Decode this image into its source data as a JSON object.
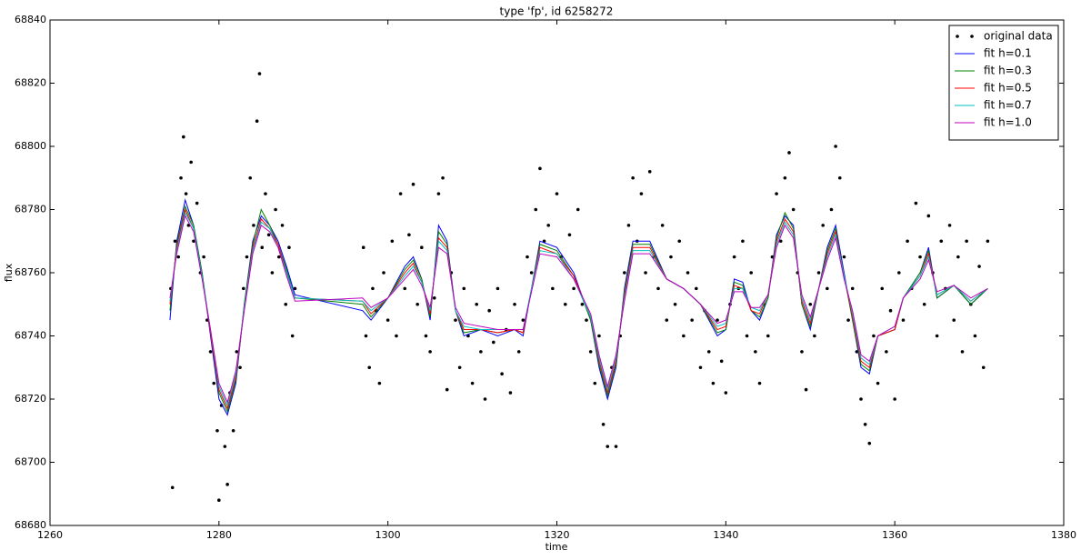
{
  "chart_data": {
    "type": "line",
    "title": "type 'fp', id 6258272",
    "x_label": "time",
    "y_label": "flux",
    "xlim": [
      1260,
      1380
    ],
    "xticks": [
      1260,
      1280,
      1300,
      1320,
      1340,
      1360,
      1380
    ],
    "ylim": [
      68680,
      68840
    ],
    "yticks": [
      68680,
      68700,
      68720,
      68740,
      68760,
      68780,
      68800,
      68820,
      68840
    ],
    "legend": "upper right",
    "x": [
      1274.2,
      1275,
      1276,
      1277,
      1278,
      1279,
      1280,
      1281,
      1282,
      1283,
      1284,
      1285,
      1286,
      1287,
      1288,
      1289,
      1297,
      1298,
      1300,
      1302,
      1303,
      1304,
      1305,
      1306,
      1307,
      1308,
      1309,
      1311,
      1313,
      1315,
      1316,
      1317,
      1318,
      1320,
      1322,
      1324,
      1325,
      1326,
      1327,
      1328,
      1329,
      1331,
      1333,
      1335,
      1337,
      1339,
      1340,
      1341,
      1342,
      1343,
      1344,
      1345,
      1346,
      1347,
      1348,
      1349,
      1350,
      1351,
      1352,
      1353,
      1354,
      1355,
      1356,
      1357,
      1358,
      1360,
      1361,
      1363,
      1364,
      1365,
      1367,
      1369,
      1371
    ],
    "series": [
      {
        "name": "original data",
        "color": "#000000",
        "marker": "dot",
        "line": false,
        "x": [
          1274.3,
          1274.5,
          1274.8,
          1275.2,
          1275.5,
          1275.8,
          1276.1,
          1276.4,
          1276.7,
          1277.0,
          1277.4,
          1277.8,
          1278.2,
          1278.6,
          1279.0,
          1279.4,
          1279.8,
          1280.0,
          1280.3,
          1280.7,
          1281.0,
          1281.3,
          1281.7,
          1282.1,
          1282.5,
          1282.9,
          1283.3,
          1283.7,
          1284.1,
          1284.5,
          1284.8,
          1285.1,
          1285.5,
          1285.9,
          1286.3,
          1286.7,
          1287.1,
          1287.5,
          1287.9,
          1288.3,
          1288.7,
          1289.0,
          1297.1,
          1297.4,
          1297.8,
          1298.2,
          1298.6,
          1299.0,
          1299.5,
          1300.0,
          1300.5,
          1301.0,
          1301.5,
          1302.0,
          1302.5,
          1303.0,
          1303.5,
          1304.0,
          1304.5,
          1305.0,
          1305.5,
          1306.0,
          1306.5,
          1307.0,
          1307.5,
          1308.0,
          1308.5,
          1309.0,
          1309.5,
          1310.0,
          1310.5,
          1311.0,
          1311.5,
          1312.0,
          1312.5,
          1313.0,
          1313.5,
          1314.0,
          1314.5,
          1315.0,
          1315.5,
          1316.0,
          1316.5,
          1317.0,
          1317.5,
          1318.0,
          1318.5,
          1319.0,
          1319.5,
          1320.0,
          1320.5,
          1321.0,
          1321.5,
          1322.0,
          1322.5,
          1323.0,
          1323.5,
          1324.0,
          1324.5,
          1325.0,
          1325.5,
          1326.0,
          1326.5,
          1327.0,
          1327.5,
          1328.0,
          1328.5,
          1329.0,
          1329.5,
          1330.0,
          1330.5,
          1331.0,
          1331.5,
          1332.0,
          1332.5,
          1333.0,
          1333.5,
          1334.0,
          1334.5,
          1335.0,
          1335.5,
          1336.0,
          1336.5,
          1337.0,
          1337.5,
          1338.0,
          1338.5,
          1339.0,
          1339.5,
          1340.0,
          1340.5,
          1341.0,
          1341.5,
          1342.0,
          1342.5,
          1343.0,
          1343.5,
          1344.0,
          1344.5,
          1345.0,
          1345.5,
          1346.0,
          1346.5,
          1347.0,
          1347.5,
          1348.0,
          1348.5,
          1349.0,
          1349.5,
          1350.0,
          1350.5,
          1351.0,
          1351.5,
          1352.0,
          1352.5,
          1353.0,
          1353.5,
          1354.0,
          1354.5,
          1355.0,
          1355.5,
          1356.0,
          1356.5,
          1357.0,
          1357.5,
          1358.0,
          1358.5,
          1359.0,
          1359.5,
          1360.0,
          1360.5,
          1361.0,
          1361.5,
          1362.0,
          1362.5,
          1363.0,
          1363.5,
          1364.0,
          1364.5,
          1365.0,
          1365.5,
          1366.0,
          1366.5,
          1367.0,
          1367.5,
          1368.0,
          1368.5,
          1369.0,
          1369.5,
          1370.0,
          1370.5,
          1371.0
        ],
        "values": [
          68755,
          68692,
          68770,
          68765,
          68790,
          68803,
          68785,
          68775,
          68795,
          68770,
          68782,
          68760,
          68765,
          68745,
          68735,
          68725,
          68710,
          68688,
          68718,
          68705,
          68693,
          68722,
          68710,
          68735,
          68730,
          68755,
          68765,
          68790,
          68775,
          68808,
          68823,
          68768,
          68785,
          68772,
          68760,
          68780,
          68765,
          68775,
          68750,
          68768,
          68740,
          68755,
          68768,
          68740,
          68730,
          68755,
          68748,
          68725,
          68760,
          68745,
          68770,
          68740,
          68785,
          68755,
          68772,
          68788,
          68750,
          68768,
          68740,
          68735,
          68752,
          68785,
          68790,
          68723,
          68760,
          68745,
          68730,
          68755,
          68740,
          68725,
          68750,
          68735,
          68720,
          68748,
          68738,
          68755,
          68728,
          68742,
          68722,
          68750,
          68735,
          68745,
          68765,
          68760,
          68780,
          68793,
          68770,
          68775,
          68755,
          68785,
          68765,
          68750,
          68772,
          68755,
          68780,
          68750,
          68745,
          68735,
          68725,
          68740,
          68712,
          68705,
          68730,
          68705,
          68740,
          68760,
          68775,
          68790,
          68770,
          68785,
          68760,
          68792,
          68765,
          68755,
          68775,
          68745,
          68765,
          68750,
          68770,
          68740,
          68760,
          68745,
          68755,
          68730,
          68748,
          68735,
          68725,
          68745,
          68732,
          68722,
          68750,
          68765,
          68755,
          68770,
          68740,
          68760,
          68735,
          68725,
          68750,
          68740,
          68765,
          68785,
          68770,
          68790,
          68798,
          68780,
          68760,
          68735,
          68723,
          68750,
          68740,
          68760,
          68775,
          68755,
          68780,
          68800,
          68790,
          68765,
          68745,
          68755,
          68735,
          68720,
          68712,
          68706,
          68740,
          68725,
          68755,
          68735,
          68748,
          68720,
          68760,
          68745,
          68770,
          68755,
          68782,
          68765,
          68750,
          68778,
          68760,
          68740,
          68770,
          68755,
          68775,
          68745,
          68765,
          68735,
          68770,
          68750,
          68740,
          68762,
          68730,
          68770
        ]
      },
      {
        "name": "fit h=0.1",
        "color": "#0000ff",
        "values": [
          68745,
          68770,
          68783,
          68775,
          68760,
          68740,
          68720,
          68715,
          68725,
          68750,
          68770,
          68778,
          68775,
          68770,
          68762,
          68753,
          68748,
          68745,
          68752,
          68762,
          68765,
          68758,
          68745,
          68775,
          68770,
          68748,
          68740,
          68742,
          68740,
          68742,
          68740,
          68755,
          68770,
          68768,
          68760,
          68745,
          68730,
          68720,
          68730,
          68755,
          68770,
          68770,
          68758,
          68755,
          68750,
          68740,
          68742,
          68758,
          68757,
          68748,
          68745,
          68752,
          68772,
          68778,
          68775,
          68750,
          68742,
          68755,
          68768,
          68775,
          68760,
          68745,
          68730,
          68728,
          68740,
          68742,
          68752,
          68760,
          68768,
          68752,
          68756,
          68750,
          68755
        ]
      },
      {
        "name": "fit h=0.3",
        "color": "#008000",
        "values": [
          68748,
          68769,
          68781,
          68775,
          68760,
          68741,
          68722,
          68716,
          68726,
          68750,
          68769,
          68780,
          68775,
          68769,
          68761,
          68752,
          68750,
          68746,
          68752,
          68761,
          68764,
          68758,
          68746,
          68773,
          68769,
          68748,
          68741,
          68742,
          68741,
          68742,
          68741,
          68755,
          68769,
          68767,
          68759,
          68745,
          68731,
          68721,
          68731,
          68754,
          68769,
          68769,
          68758,
          68755,
          68750,
          68741,
          68742,
          68757,
          68756,
          68748,
          68746,
          68752,
          68771,
          68779,
          68774,
          68750,
          68743,
          68755,
          68767,
          68774,
          68759,
          68745,
          68731,
          68729,
          68740,
          68742,
          68752,
          68760,
          68767,
          68752,
          68756,
          68750,
          68755
        ]
      },
      {
        "name": "fit h=0.5",
        "color": "#ff0000",
        "values": [
          68750,
          68768,
          68780,
          68774,
          68759,
          68741,
          68723,
          68717,
          68727,
          68749,
          68768,
          68777,
          68774,
          68769,
          68760,
          68752,
          68751,
          68747,
          68752,
          68760,
          68763,
          68757,
          68747,
          68771,
          68768,
          68748,
          68742,
          68742,
          68741,
          68742,
          68741,
          68755,
          68768,
          68766,
          68759,
          68746,
          68732,
          68722,
          68732,
          68753,
          68768,
          68768,
          68758,
          68755,
          68750,
          68742,
          68743,
          68756,
          68755,
          68748,
          68747,
          68753,
          68770,
          68777,
          68773,
          68751,
          68744,
          68755,
          68766,
          68773,
          68759,
          68746,
          68732,
          68730,
          68740,
          68742,
          68752,
          68759,
          68766,
          68753,
          68756,
          68751,
          68755
        ]
      },
      {
        "name": "fit h=0.7",
        "color": "#00bfbf",
        "values": [
          68751,
          68767,
          68779,
          68774,
          68759,
          68742,
          68724,
          68718,
          68728,
          68749,
          68767,
          68776,
          68774,
          68768,
          68760,
          68752,
          68751,
          68748,
          68752,
          68759,
          68762,
          68757,
          68748,
          68770,
          68767,
          68748,
          68743,
          68742,
          68742,
          68742,
          68742,
          68755,
          68767,
          68766,
          68758,
          68746,
          68733,
          68723,
          68733,
          68752,
          68767,
          68767,
          68758,
          68755,
          68750,
          68743,
          68744,
          68755,
          68755,
          68749,
          68748,
          68753,
          68769,
          68776,
          68772,
          68752,
          68745,
          68755,
          68765,
          68772,
          68759,
          68747,
          68733,
          68731,
          68740,
          68743,
          68752,
          68759,
          68765,
          68753,
          68756,
          68751,
          68755
        ]
      },
      {
        "name": "fit h=1.0",
        "color": "#bf00bf",
        "values": [
          68752,
          68766,
          68778,
          68773,
          68758,
          68742,
          68725,
          68719,
          68729,
          68748,
          68766,
          68775,
          68773,
          68768,
          68759,
          68751,
          68752,
          68749,
          68752,
          68758,
          68761,
          68756,
          68749,
          68768,
          68766,
          68749,
          68744,
          68743,
          68742,
          68742,
          68742,
          68754,
          68766,
          68765,
          68758,
          68747,
          68734,
          68724,
          68734,
          68751,
          68766,
          68766,
          68758,
          68755,
          68750,
          68744,
          68745,
          68754,
          68754,
          68749,
          68749,
          68753,
          68768,
          68775,
          68771,
          68753,
          68746,
          68755,
          68764,
          68771,
          68758,
          68748,
          68734,
          68732,
          68740,
          68743,
          68752,
          68758,
          68764,
          68754,
          68756,
          68752,
          68755
        ]
      }
    ]
  }
}
